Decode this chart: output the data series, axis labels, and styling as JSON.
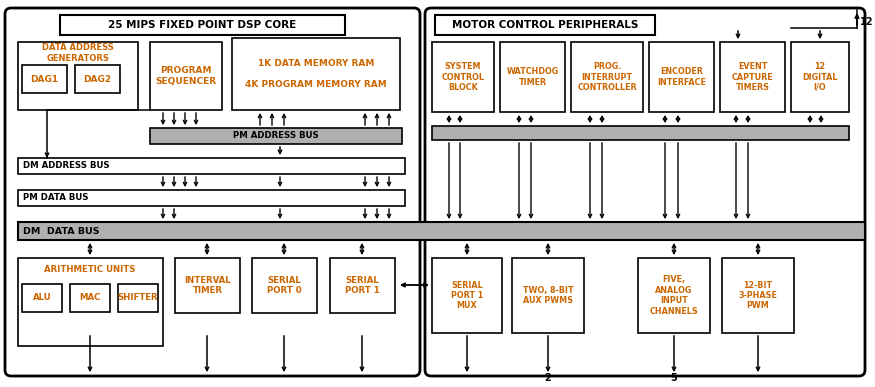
{
  "bg_color": "#ffffff",
  "text_color": "#cc6600",
  "black": "#000000",
  "bus_fill": "#b0b0b0",
  "bus_fill_light": "#d8d8d8",
  "fig_width": 8.75,
  "fig_height": 3.87,
  "dsp_title": "25 MIPS FIXED POINT DSP CORE",
  "mcp_title": "MOTOR CONTROL PERIPHERALS",
  "dag_label": "DATA ADDRESS\nGENERATORS",
  "dag1": "DAG1",
  "dag2": "DAG2",
  "prog_seq": "PROGRAM\nSEQUENCER",
  "mem_ram": "1K DATA MEMORY RAM\n\n4K PROGRAM MEMORY RAM",
  "pm_addr": "PM ADDRESS BUS",
  "dm_addr": "DM ADDRESS BUS",
  "pm_data": "PM DATA BUS",
  "dm_data": "DM  DATA BUS",
  "arith_label": "ARITHMETIC UNITS",
  "alu": "ALU",
  "mac": "MAC",
  "shifter": "SHIFTER",
  "interval": "INTERVAL\nTIMER",
  "serial0": "SERIAL\nPORT 0",
  "serial1": "SERIAL\nPORT 1",
  "sys_ctrl": "SYSTEM\nCONTROL\nBLOCK",
  "watchdog": "WATCHDOG\nTIMER",
  "prog_int": "PROG.\nINTERRUPT\nCONTROLLER",
  "encoder": "ENCODER\nINTERFACE",
  "event_cap": "EVENT\nCAPTURE\nTIMERS",
  "digital_io": "12\nDIGITAL\nI/O",
  "serial_mux": "SERIAL\nPORT 1\nMUX",
  "two_pwm": "TWO, 8-BIT\nAUX PWMS",
  "five_adc": "FIVE,\nANALOG\nINPUT\nCHANNELS",
  "twelve_pwm": "12-BIT\n3-PHASE\nPWM",
  "num_12": "12",
  "num_2": "2",
  "num_5": "5"
}
